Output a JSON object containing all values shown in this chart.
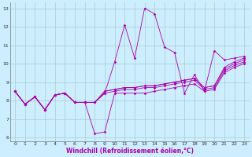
{
  "xlabel": "Windchill (Refroidissement éolien,°C)",
  "background_color": "#cceeff",
  "grid_color": "#aacccc",
  "line_color": "#aa00aa",
  "xlim": [
    -0.5,
    23.5
  ],
  "ylim": [
    5.8,
    13.3
  ],
  "xticks": [
    0,
    1,
    2,
    3,
    4,
    5,
    6,
    7,
    8,
    9,
    10,
    11,
    12,
    13,
    14,
    15,
    16,
    17,
    18,
    19,
    20,
    21,
    22,
    23
  ],
  "yticks": [
    6,
    7,
    8,
    9,
    10,
    11,
    12,
    13
  ],
  "series": [
    [
      8.5,
      7.8,
      8.2,
      7.5,
      8.3,
      8.4,
      7.9,
      7.9,
      7.9,
      8.4,
      10.1,
      12.1,
      10.3,
      13.0,
      12.7,
      10.9,
      10.6,
      8.4,
      9.4,
      8.5,
      10.7,
      10.2,
      10.3,
      10.4
    ],
    [
      8.5,
      7.8,
      8.2,
      7.5,
      8.3,
      8.4,
      7.9,
      7.9,
      6.2,
      6.3,
      8.4,
      8.4,
      8.4,
      8.4,
      8.5,
      8.6,
      8.7,
      8.8,
      8.9,
      8.5,
      8.6,
      9.5,
      9.8,
      10.0
    ],
    [
      8.5,
      7.8,
      8.2,
      7.5,
      8.3,
      8.4,
      7.9,
      7.9,
      7.9,
      8.4,
      8.5,
      8.6,
      8.6,
      8.7,
      8.7,
      8.8,
      8.9,
      9.0,
      9.1,
      8.6,
      8.7,
      9.6,
      9.9,
      10.1
    ],
    [
      8.5,
      7.8,
      8.2,
      7.5,
      8.3,
      8.4,
      7.9,
      7.9,
      7.9,
      8.5,
      8.6,
      8.7,
      8.7,
      8.8,
      8.8,
      8.9,
      9.0,
      9.1,
      9.2,
      8.7,
      8.8,
      9.7,
      10.0,
      10.2
    ],
    [
      8.5,
      7.8,
      8.2,
      7.5,
      8.3,
      8.4,
      7.9,
      7.9,
      7.9,
      8.5,
      8.6,
      8.7,
      8.7,
      8.8,
      8.8,
      8.9,
      9.0,
      9.1,
      9.2,
      8.7,
      8.8,
      9.8,
      10.1,
      10.3
    ]
  ]
}
